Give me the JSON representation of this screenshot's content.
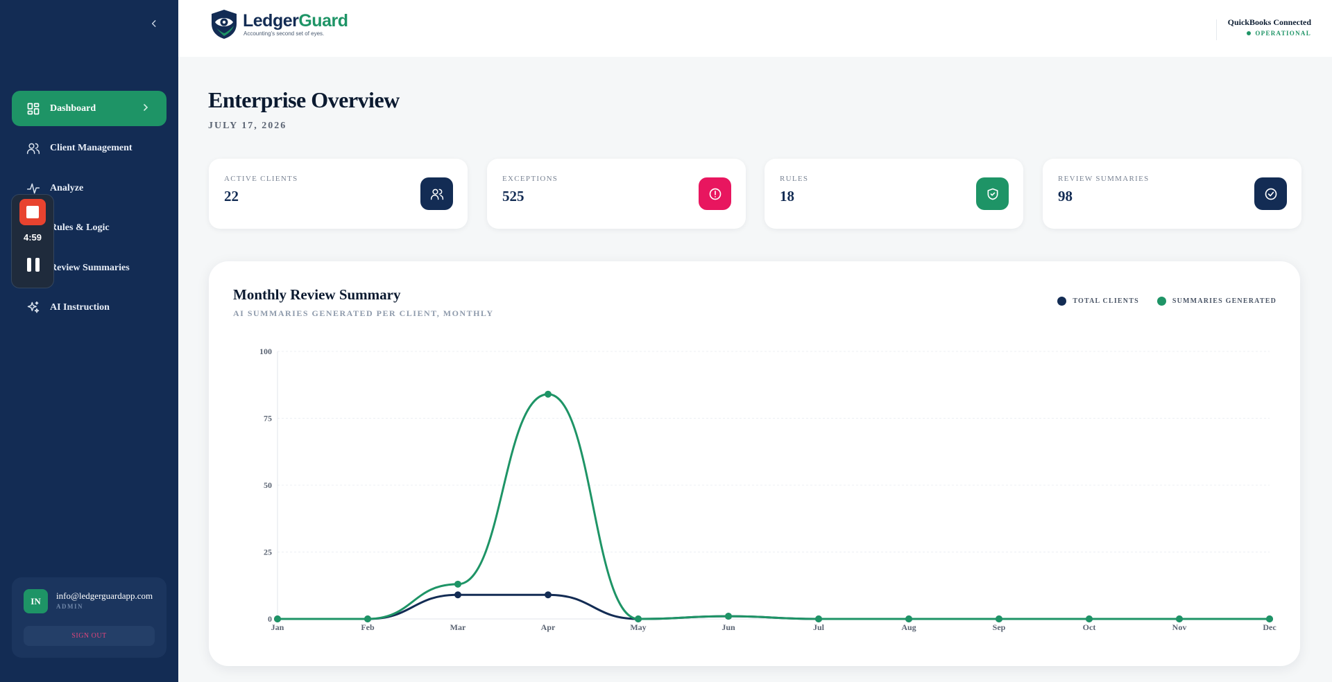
{
  "sidebar": {
    "nav": [
      {
        "label": "Dashboard",
        "icon": "dashboard-grid-icon",
        "active": true
      },
      {
        "label": "Client Management",
        "icon": "users-icon"
      },
      {
        "label": "Analyze",
        "icon": "activity-icon"
      },
      {
        "label": "Rules & Logic",
        "icon": "rules-icon"
      },
      {
        "label": "Review Summaries",
        "icon": "file-check-icon"
      },
      {
        "label": "AI Instruction",
        "icon": "sparkles-icon"
      }
    ],
    "user": {
      "initials": "IN",
      "email": "info@ledgerguardapp.com",
      "role": "ADMIN",
      "signout_label": "SIGN OUT"
    }
  },
  "recorder": {
    "time": "4:59"
  },
  "header": {
    "logo_name_part1": "Ledger",
    "logo_name_part2": "Guard",
    "logo_tagline": "Accounting's second set of eyes.",
    "connection_title": "QuickBooks Connected",
    "connection_status": "OPERATIONAL"
  },
  "main": {
    "title": "Enterprise Overview",
    "date": "JULY 17, 2026",
    "stats": [
      {
        "label": "ACTIVE CLIENTS",
        "value": "22",
        "icon": "users-icon",
        "color": "#132c54"
      },
      {
        "label": "EXCEPTIONS",
        "value": "525",
        "icon": "alert-circle-icon",
        "color": "#e8165f"
      },
      {
        "label": "RULES",
        "value": "18",
        "icon": "shield-check-icon",
        "color": "#1e9466"
      },
      {
        "label": "REVIEW SUMMARIES",
        "value": "98",
        "icon": "check-circle-icon",
        "color": "#132c54"
      }
    ]
  },
  "chart": {
    "title": "Monthly Review Summary",
    "subtitle": "AI SUMMARIES GENERATED PER CLIENT, MONTHLY"
  },
  "chart_data": {
    "type": "line",
    "title": "Monthly Review Summary",
    "subtitle": "AI SUMMARIES GENERATED PER CLIENT, MONTHLY",
    "categories": [
      "Jan",
      "Feb",
      "Mar",
      "Apr",
      "May",
      "Jun",
      "Jul",
      "Aug",
      "Sep",
      "Oct",
      "Nov",
      "Dec"
    ],
    "ylim": [
      0,
      100
    ],
    "yticks": [
      0,
      25,
      50,
      75,
      100
    ],
    "grid": true,
    "legend_position": "top-right",
    "series": [
      {
        "name": "TOTAL CLIENTS",
        "color": "#132c54",
        "values": [
          0,
          0,
          9,
          9,
          0,
          1,
          0,
          0,
          0,
          0,
          0,
          0
        ]
      },
      {
        "name": "SUMMARIES GENERATED",
        "color": "#1e9466",
        "values": [
          0,
          0,
          13,
          84,
          0,
          1,
          0,
          0,
          0,
          0,
          0,
          0
        ]
      }
    ]
  }
}
